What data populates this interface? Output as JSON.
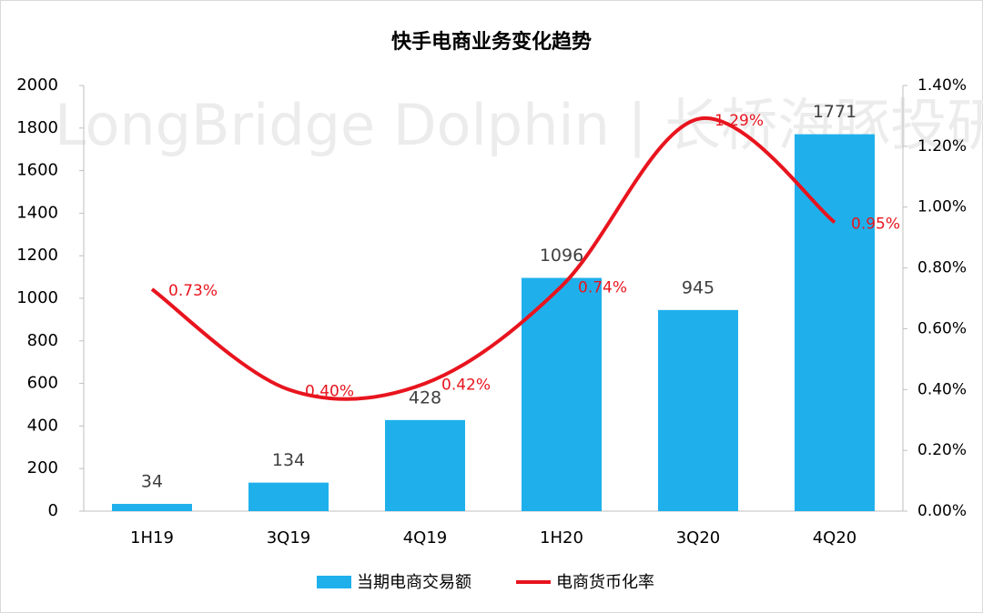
{
  "chart_data": {
    "type": "bar",
    "title": "快手电商业务变化趋势",
    "watermark": "LongBridge Dolphin | 长桥海豚投研",
    "categories": [
      "1H19",
      "3Q19",
      "4Q19",
      "1H20",
      "3Q20",
      "4Q20"
    ],
    "series": [
      {
        "name": "当期电商交易额",
        "type": "bar",
        "color": "#1fb0ec",
        "values": [
          34,
          134,
          428,
          1096,
          945,
          1771
        ]
      },
      {
        "name": "电商货币化率",
        "type": "line",
        "axis": "y2",
        "color": "#e8141e",
        "values": [
          0.73,
          0.4,
          0.42,
          0.74,
          1.29,
          0.95
        ],
        "value_labels": [
          "0.73%",
          "0.40%",
          "0.42%",
          "0.74%",
          "1.29%",
          "0.95%"
        ]
      }
    ],
    "ylim": [
      0,
      2000
    ],
    "yticks": [
      0,
      200,
      400,
      600,
      800,
      1000,
      1200,
      1400,
      1600,
      1800,
      2000
    ],
    "y2lim": [
      0,
      1.4
    ],
    "y2ticks": [
      {
        "value": 0,
        "label": "0.00%"
      },
      {
        "value": 0.2,
        "label": "0.20%"
      },
      {
        "value": 0.4,
        "label": "0.40%"
      },
      {
        "value": 0.6,
        "label": "0.60%"
      },
      {
        "value": 0.8,
        "label": "0.80%"
      },
      {
        "value": 1.0,
        "label": "1.00%"
      },
      {
        "value": 1.2,
        "label": "1.20%"
      },
      {
        "value": 1.4,
        "label": "1.40%"
      }
    ],
    "grid": false,
    "legend": "bottom"
  }
}
